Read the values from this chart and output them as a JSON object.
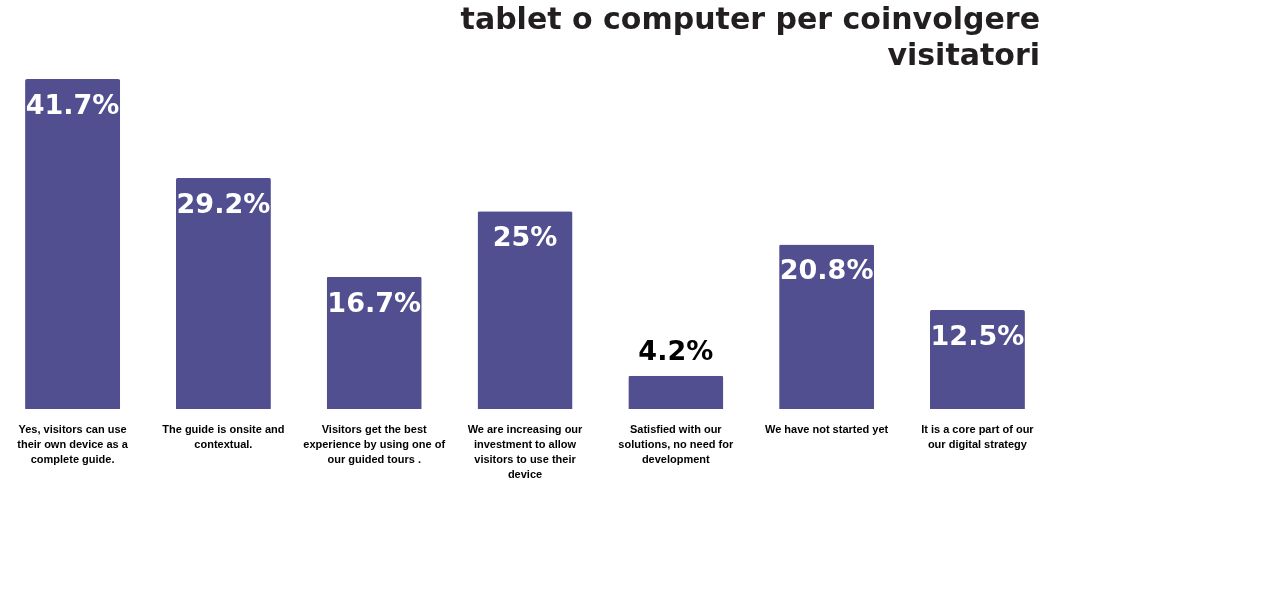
{
  "chart_data": {
    "type": "bar",
    "title": "tablet o computer per coinvolgere visitatori",
    "categories": [
      "Yes, visitors can use their own device as a complete guide.",
      "The guide is onsite and contextual.",
      "Visitors get the best experience by using one of our guided tours .",
      "We are increasing our investment to allow visitors to use their device",
      "Satisfied with our solutions, no need for development",
      "We have not started yet",
      "It is a core part of our our digital strategy"
    ],
    "values": [
      41.7,
      29.2,
      16.7,
      25,
      4.2,
      20.8,
      12.5
    ],
    "value_labels": [
      "41.7%",
      "29.2%",
      "16.7%",
      "25%",
      "4.2%",
      "20.8%",
      "12.5%"
    ],
    "color": "#514f90"
  }
}
